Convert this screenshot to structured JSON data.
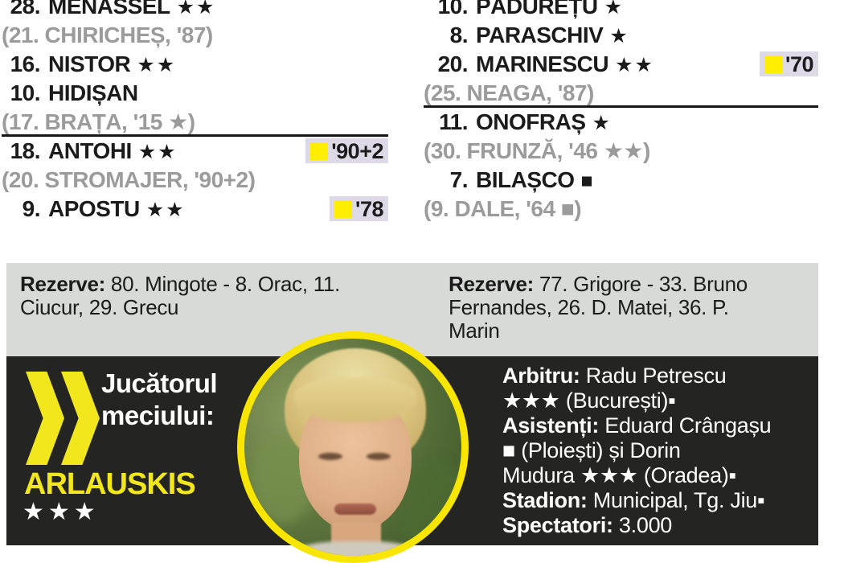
{
  "colors": {
    "yellow_card": "#ffee00",
    "badge_bg": "#ded9e6",
    "accent_yellow": "#f2e71d",
    "gray_band": "#d8dad8",
    "black_band": "#242422",
    "gray_text": "#9b9b9b",
    "dark_text": "#1b1b1b"
  },
  "lineups": {
    "left": {
      "rows": [
        {
          "type": "main",
          "num": "28.",
          "name": "MENASSEL",
          "marks": "★★"
        },
        {
          "type": "sub",
          "text": "(21. CHIRICHEȘ, '87)"
        },
        {
          "type": "main",
          "num": "16.",
          "name": "NISTOR",
          "marks": "★★"
        },
        {
          "type": "main",
          "num": "10.",
          "name": "HIDIȘAN",
          "marks": ""
        },
        {
          "type": "sub",
          "text": "(17. BRAȚA, '15 ★)",
          "underline": true
        },
        {
          "type": "main",
          "num": "18.",
          "name": "ANTOHI",
          "marks": "★★",
          "badge": "'90+2"
        },
        {
          "type": "sub",
          "text": "(20. STROMAJER, '90+2)"
        },
        {
          "type": "main",
          "num": "9.",
          "name": "APOSTU",
          "marks": "★★",
          "badge": "'78"
        }
      ]
    },
    "right": {
      "rows": [
        {
          "type": "main",
          "num": "10.",
          "name": "PĂDUREȚU",
          "marks": "★"
        },
        {
          "type": "main",
          "num": "8.",
          "name": "PARASCHIV",
          "marks": "★"
        },
        {
          "type": "main",
          "num": "20.",
          "name": "MARINESCU",
          "marks": "★★",
          "badge": "'70"
        },
        {
          "type": "sub",
          "text": "(25. NEAGA, '87)",
          "underline": true
        },
        {
          "type": "main",
          "num": "11.",
          "name": "ONOFRAȘ",
          "marks": "★"
        },
        {
          "type": "sub",
          "text": "(30. FRUNZĂ, '46 ★★)"
        },
        {
          "type": "main",
          "num": "7.",
          "name": "BILAȘCO",
          "marks": "■"
        },
        {
          "type": "sub",
          "text": "(9. DALE, '64 ■)"
        }
      ]
    }
  },
  "reserves": {
    "left": {
      "label": "Rezerve:",
      "players": " 80. Mingote - 8. Orac, 11.\nCiucur, 29. Grecu"
    },
    "right": {
      "label": "Rezerve:",
      "players": " 77. Grigore - 33. Bruno\nFernandes, 26. D. Matei, 36. P.\nMarin"
    }
  },
  "potm": {
    "label": "Jucătorul\nmeciului:",
    "name": "ARLAUSKIS",
    "stars": "★★★"
  },
  "referee": {
    "lines": [
      [
        {
          "b": "Arbitru:"
        },
        {
          "t": " Radu Petrescu"
        }
      ],
      [
        {
          "t": "★★★ (București)▪"
        }
      ],
      [
        {
          "b": "Asistenți:"
        },
        {
          "t": " Eduard Crângașu"
        }
      ],
      [
        {
          "t": "■ (Ploiești) și Dorin"
        }
      ],
      [
        {
          "t": "Mudura ★★★ (Oradea)▪"
        }
      ],
      [
        {
          "b": "Stadion:"
        },
        {
          "t": " Municipal, Tg. Jiu▪"
        }
      ],
      [
        {
          "b": "Spectatori:"
        },
        {
          "t": " 3.000"
        }
      ]
    ]
  }
}
